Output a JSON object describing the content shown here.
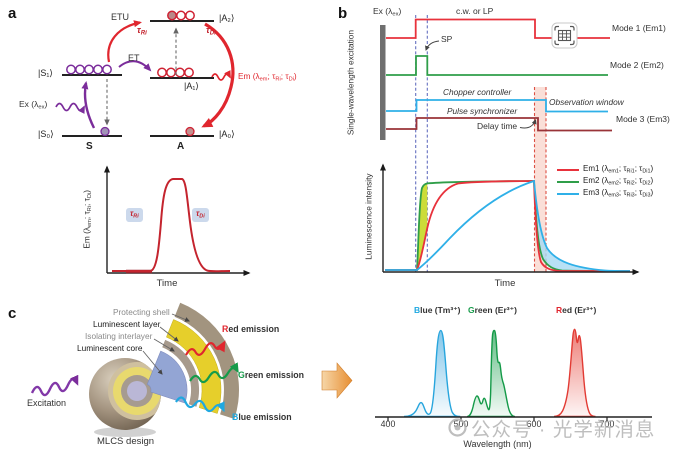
{
  "panel_letters": {
    "a": "a",
    "b": "b",
    "c": "c"
  },
  "colors": {
    "red": "#e0262e",
    "crimson": "#e8323c",
    "green": "#2f9e49",
    "emerald": "#169b4a",
    "cyan_blue": "#2fb0e8",
    "maroon": "#993338",
    "purple": "#7b2d9b",
    "dashed_blue": "#6670c0",
    "dashed_red": "#dd4f43",
    "rise_shade_yellow": "#c9da2e",
    "decay_shade_blue": "#a6d9f2",
    "tau_chip_bg": "#ccd9ec",
    "spectrum_blue": "#27a5dd",
    "spectrum_green": "#149a48",
    "spectrum_red": "#e23b34",
    "orange_arrow": "#e78f33"
  },
  "panel_a": {
    "kets": {
      "s1": "|S₁⟩",
      "s0": "|S₀⟩",
      "a2": "|A₂⟩",
      "a1": "|A₁⟩",
      "a0": "|A₀⟩"
    },
    "s_label": "S",
    "a_label": "A",
    "etu": "ETU",
    "et": "ET",
    "tau_ri": [
      {
        "t": "τ"
      },
      {
        "s": "Ri"
      }
    ],
    "tau_di": [
      {
        "t": "τ"
      },
      {
        "s": "Di"
      }
    ],
    "ex_label": [
      {
        "t": "Ex (λ"
      },
      {
        "s": "ex"
      },
      {
        "t": ")"
      }
    ],
    "em_label": [
      {
        "t": "Em (λ"
      },
      {
        "s": "em"
      },
      {
        "t": "; τ"
      },
      {
        "s": "Ri"
      },
      {
        "t": "; τ"
      },
      {
        "s": "Di"
      },
      {
        "t": ")"
      }
    ],
    "plot": {
      "ylabel": [
        {
          "t": "Em (λ"
        },
        {
          "s": "em"
        },
        {
          "t": "; τ"
        },
        {
          "s": "Ri"
        },
        {
          "t": "; τ"
        },
        {
          "s": "Di"
        },
        {
          "t": ")"
        }
      ],
      "xlabel": "Time",
      "chip_rise": [
        {
          "t": "τ"
        },
        {
          "s": "Ri"
        }
      ],
      "chip_decay": [
        {
          "t": "τ"
        },
        {
          "s": "Di"
        }
      ]
    }
  },
  "panel_b": {
    "ylabel_top": "Single-wavelength excitation",
    "ex_label": [
      {
        "t": "Ex (λ"
      },
      {
        "s": "ex"
      },
      {
        "t": ")"
      }
    ],
    "cw_or_lp": "c.w. or LP",
    "sp": "SP",
    "chopper": "Chopper controller",
    "pulse_sync": "Pulse synchronizer",
    "delay_time": "Delay time",
    "observation_window": "Observation window",
    "mode1": "Mode 1 (Em1)",
    "mode2": "Mode 2 (Em2)",
    "mode3": "Mode 3 (Em3)",
    "plot": {
      "ylabel": "Luminescence intensity",
      "xlabel": "Time",
      "legend": [
        {
          "color": "#e8323c",
          "parts": [
            {
              "t": "Em1 (λ"
            },
            {
              "s": "em1"
            },
            {
              "t": "; τ"
            },
            {
              "s": "Ri1"
            },
            {
              "t": "; τ"
            },
            {
              "s": "Di1"
            },
            {
              "t": ")"
            }
          ]
        },
        {
          "color": "#2f9e49",
          "parts": [
            {
              "t": "Em2 (λ"
            },
            {
              "s": "em2"
            },
            {
              "t": "; τ"
            },
            {
              "s": "Ri2"
            },
            {
              "t": "; τ"
            },
            {
              "s": "Di2"
            },
            {
              "t": ")"
            }
          ]
        },
        {
          "color": "#2fb0e8",
          "parts": [
            {
              "t": "Em3 (λ"
            },
            {
              "s": "em3"
            },
            {
              "t": "; τ"
            },
            {
              "s": "Ri3"
            },
            {
              "t": "; τ"
            },
            {
              "s": "Di3"
            },
            {
              "t": ")"
            }
          ]
        }
      ]
    }
  },
  "panel_c": {
    "layers": [
      {
        "label": "Protecting shell",
        "tone": "gray"
      },
      {
        "label": "Luminescent layer",
        "tone": "dark"
      },
      {
        "label": "Isolating interlayer",
        "tone": "gray"
      },
      {
        "label": "Luminescent core",
        "tone": "dark"
      }
    ],
    "excitation": "Excitation",
    "design": "MLCS design",
    "emissions": [
      {
        "first": "R",
        "rest": "ed emission",
        "color": "#e0262e"
      },
      {
        "first": "G",
        "rest": "reen emission",
        "color": "#169b4a"
      },
      {
        "first": "B",
        "rest": "lue emission",
        "color": "#1fa8e0"
      }
    ],
    "spectra": {
      "labels": [
        {
          "first": "B",
          "rest": "lue (Tm³⁺)",
          "color": "#27a5dd"
        },
        {
          "first": "G",
          "rest": "reen (Er³⁺)",
          "color": "#149a48"
        },
        {
          "first": "R",
          "rest": "ed (Er³⁺)",
          "color": "#e23b34"
        }
      ],
      "ticks": [
        "400",
        "500",
        "600",
        "700"
      ],
      "xlabel": "Wavelength (nm)"
    }
  },
  "watermark": {
    "text": "公众号 · 光学新消息"
  },
  "chart_data": [
    {
      "id": "panel-a-emission-kinetics",
      "type": "line",
      "xlabel": "Time",
      "ylabel": "Em (lambda_em; tau_Ri; tau_Di)",
      "x": [
        0,
        1,
        2,
        2.5,
        3,
        3.5,
        4,
        4.5,
        5,
        5.5,
        6,
        7,
        8
      ],
      "series": [
        {
          "name": "Em",
          "values": [
            0,
            0,
            0,
            0.1,
            0.75,
            0.97,
            1,
            1,
            0.55,
            0.25,
            0.1,
            0.02,
            0
          ]
        }
      ],
      "annotations": [
        "tau_Ri labels rise phase",
        "tau_Di labels decay phase"
      ]
    },
    {
      "id": "panel-b-excitation-timing",
      "type": "line",
      "ylabel": "Single-wavelength excitation",
      "series": [
        {
          "name": "Mode 1 (Em1) - c.w. or LP",
          "shape": "step",
          "on_interval": [
            1,
            5
          ]
        },
        {
          "name": "Mode 2 (Em2) - SP",
          "shape": "step",
          "on_interval": [
            1,
            1.35
          ]
        },
        {
          "name": "Chopper controller",
          "shape": "step",
          "on_interval": [
            1,
            5.45
          ],
          "note": "observation window after fall"
        },
        {
          "name": "Mode 3 (Em3) - Pulse synchronizer",
          "shape": "step",
          "on_interval": [
            1,
            5.15
          ],
          "note": "delay time between fall and observation window"
        }
      ]
    },
    {
      "id": "panel-b-luminescence-kinetics",
      "type": "line",
      "xlabel": "Time",
      "ylabel": "Luminescence intensity",
      "legend_position": "top-right",
      "series": [
        {
          "name": "Em1",
          "rise": "medium",
          "decay": "fast"
        },
        {
          "name": "Em2",
          "rise": "fast",
          "decay": "medium"
        },
        {
          "name": "Em3",
          "rise": "slow",
          "decay": "slow"
        }
      ],
      "shaded_regions": [
        "yellow-green between Em2 and Em1 rise",
        "light blue between Em3 and Em2 decay"
      ]
    },
    {
      "id": "panel-c-emission-spectra",
      "type": "area",
      "xlabel": "Wavelength (nm)",
      "xlim": [
        380,
        760
      ],
      "xticks": [
        400,
        500,
        600,
        700
      ],
      "series": [
        {
          "name": "Blue (Tm3+)",
          "peaks_nm": [
            448,
            475
          ],
          "relative_heights": [
            0.17,
            1.0
          ]
        },
        {
          "name": "Green (Er3+)",
          "peaks_nm": [
            522,
            527,
            540,
            552
          ],
          "relative_heights": [
            0.25,
            0.22,
            1.0,
            0.64
          ]
        },
        {
          "name": "Red (Er3+)",
          "peaks_nm": [
            655,
            661
          ],
          "relative_heights": [
            1.0,
            0.9
          ]
        }
      ]
    }
  ]
}
